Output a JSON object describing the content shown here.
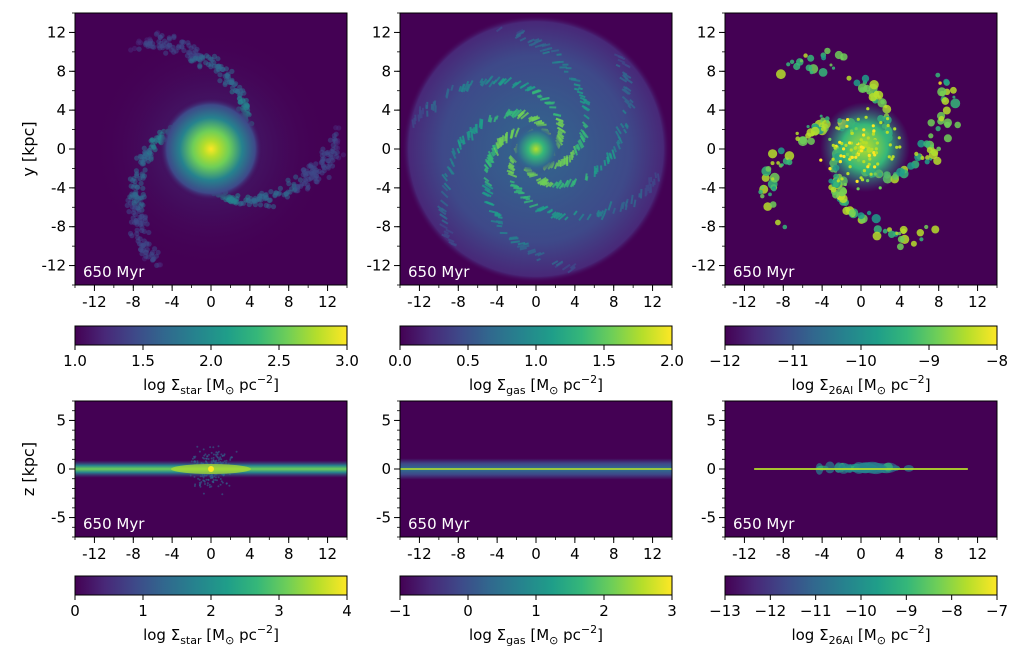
{
  "figure": {
    "ylabel_top": "y [kpc]",
    "ylabel_bottom": "z [kpc]",
    "time_label": "650 Myr"
  },
  "colors": {
    "viridis": [
      "#440154",
      "#482878",
      "#3e4989",
      "#31688e",
      "#26828e",
      "#1f9e89",
      "#35b779",
      "#6ece58",
      "#b5de2b",
      "#fde725"
    ],
    "background": "#440154",
    "time_label_color": "#ffffff"
  },
  "chart_data": [
    {
      "id": "star-faceon",
      "type": "heatmap",
      "row": "top",
      "quantity": "stellar surface density",
      "xlim": [
        -14,
        14
      ],
      "ylim": [
        -14,
        14
      ],
      "xticks": [
        -12,
        -8,
        -4,
        0,
        4,
        8,
        12
      ],
      "yticks": [
        -12,
        -8,
        -4,
        0,
        4,
        8,
        12
      ],
      "annotation": "650 Myr",
      "colorbar": {
        "label_main": "log Σ",
        "label_sub": "star",
        "label_unit": "[M",
        "label_unit2": " pc",
        "label_sup": "−2",
        "label_close": "]",
        "range": [
          1.0,
          3.0
        ],
        "ticks": [
          "1.0",
          "1.5",
          "2.0",
          "2.5",
          "3.0"
        ],
        "tick_values": [
          1.0,
          1.5,
          2.0,
          2.5,
          3.0
        ]
      }
    },
    {
      "id": "gas-faceon",
      "type": "heatmap",
      "row": "top",
      "quantity": "gas surface density",
      "xlim": [
        -14,
        14
      ],
      "ylim": [
        -14,
        14
      ],
      "xticks": [
        -12,
        -8,
        -4,
        0,
        4,
        8,
        12
      ],
      "yticks": [
        -12,
        -8,
        -4,
        0,
        4,
        8,
        12
      ],
      "annotation": "650 Myr",
      "colorbar": {
        "label_main": "log Σ",
        "label_sub": "gas",
        "label_unit": "[M",
        "label_unit2": " pc",
        "label_sup": "−2",
        "label_close": "]",
        "range": [
          0.0,
          2.0
        ],
        "ticks": [
          "0.0",
          "0.5",
          "1.0",
          "1.5",
          "2.0"
        ],
        "tick_values": [
          0.0,
          0.5,
          1.0,
          1.5,
          2.0
        ]
      }
    },
    {
      "id": "al26-faceon",
      "type": "heatmap",
      "row": "top",
      "quantity": "26Al surface density",
      "xlim": [
        -14,
        14
      ],
      "ylim": [
        -14,
        14
      ],
      "xticks": [
        -12,
        -8,
        -4,
        0,
        4,
        8,
        12
      ],
      "yticks": [
        -12,
        -8,
        -4,
        0,
        4,
        8,
        12
      ],
      "annotation": "650 Myr",
      "colorbar": {
        "label_main": "log Σ",
        "label_sub": "26Al",
        "label_unit": "[M",
        "label_unit2": " pc",
        "label_sup": "−2",
        "label_close": "]",
        "range": [
          -12,
          -8
        ],
        "ticks": [
          "−12",
          "−11",
          "−10",
          "−9",
          "−8"
        ],
        "tick_values": [
          -12,
          -11,
          -10,
          -9,
          -8
        ]
      }
    },
    {
      "id": "star-edgeon",
      "type": "heatmap",
      "row": "bottom",
      "quantity": "stellar surface density",
      "xlim": [
        -14,
        14
      ],
      "ylim": [
        -7,
        7
      ],
      "xticks": [
        -12,
        -8,
        -4,
        0,
        4,
        8,
        12
      ],
      "yticks": [
        -5,
        0,
        5
      ],
      "annotation": "650 Myr",
      "colorbar": {
        "label_main": "log Σ",
        "label_sub": "star",
        "label_unit": "[M",
        "label_unit2": " pc",
        "label_sup": "−2",
        "label_close": "]",
        "range": [
          0,
          4
        ],
        "ticks": [
          "0",
          "1",
          "2",
          "3",
          "4"
        ],
        "tick_values": [
          0,
          1,
          2,
          3,
          4
        ]
      }
    },
    {
      "id": "gas-edgeon",
      "type": "heatmap",
      "row": "bottom",
      "quantity": "gas surface density",
      "xlim": [
        -14,
        14
      ],
      "ylim": [
        -7,
        7
      ],
      "xticks": [
        -12,
        -8,
        -4,
        0,
        4,
        8,
        12
      ],
      "yticks": [
        -5,
        0,
        5
      ],
      "annotation": "650 Myr",
      "colorbar": {
        "label_main": "log Σ",
        "label_sub": "gas",
        "label_unit": "[M",
        "label_unit2": " pc",
        "label_sup": "−2",
        "label_close": "]",
        "range": [
          -1,
          3
        ],
        "ticks": [
          "−1",
          "0",
          "1",
          "2",
          "3"
        ],
        "tick_values": [
          -1,
          0,
          1,
          2,
          3
        ]
      }
    },
    {
      "id": "al26-edgeon",
      "type": "heatmap",
      "row": "bottom",
      "quantity": "26Al surface density",
      "xlim": [
        -14,
        14
      ],
      "ylim": [
        -7,
        7
      ],
      "xticks": [
        -12,
        -8,
        -4,
        0,
        4,
        8,
        12
      ],
      "yticks": [
        -5,
        0,
        5
      ],
      "annotation": "650 Myr",
      "colorbar": {
        "label_main": "log Σ",
        "label_sub": "26Al",
        "label_unit": "[M",
        "label_unit2": " pc",
        "label_sup": "−2",
        "label_close": "]",
        "range": [
          -13,
          -7
        ],
        "ticks": [
          "−13",
          "−12",
          "−11",
          "−10",
          "−9",
          "−8",
          "−7"
        ],
        "tick_values": [
          -13,
          -12,
          -11,
          -10,
          -9,
          -8,
          -7
        ]
      }
    }
  ]
}
